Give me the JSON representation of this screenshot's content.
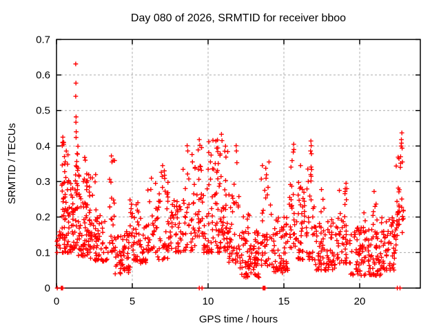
{
  "chart_data": {
    "type": "scatter",
    "title": "Day 080 of 2026, SRMTID for receiver bboo",
    "xlabel": "GPS time / hours",
    "ylabel": "SRMTID / TECUs",
    "xlim": [
      0,
      24
    ],
    "ylim": [
      0,
      0.7
    ],
    "xticks": [
      0,
      5,
      10,
      15,
      20
    ],
    "yticks": [
      0,
      0.1,
      0.2,
      0.3,
      0.4,
      0.5,
      0.6,
      0.7
    ],
    "grid": true,
    "grid_style": "dashed",
    "legend": "none",
    "marker": "plus",
    "colors": {
      "points": "#ff0000",
      "grid": "#a8a8a8",
      "axis": "#000000",
      "background": "#ffffff"
    },
    "points": [
      [
        0.05,
        0
      ],
      [
        0.03,
        0.131
      ],
      [
        0.04,
        0.1
      ],
      [
        0.06,
        0.135
      ],
      [
        0.38,
        0.401
      ],
      [
        0.42,
        0.425
      ],
      [
        0.48,
        0.41
      ],
      [
        1.27,
        0.631
      ],
      [
        1.28,
        0.577
      ],
      [
        1.27,
        0.54
      ],
      [
        1.29,
        0.482
      ],
      [
        1.28,
        0.467
      ],
      [
        1.3,
        0.44
      ],
      [
        1.29,
        0.424
      ],
      [
        3.62,
        0.372
      ],
      [
        3.66,
        0.355
      ],
      [
        7.0,
        0.345
      ],
      [
        8.62,
        0.401
      ],
      [
        8.66,
        0.386
      ],
      [
        9.42,
        0.418
      ],
      [
        9.46,
        0.402
      ],
      [
        9.42,
        0
      ],
      [
        9.6,
        0
      ],
      [
        10.05,
        0.412
      ],
      [
        10.32,
        0.416
      ],
      [
        10.52,
        0.414
      ],
      [
        10.88,
        0.433
      ],
      [
        10.92,
        0.415
      ],
      [
        11.85,
        0.401
      ],
      [
        11.87,
        0.386
      ],
      [
        11.9,
        0.353
      ],
      [
        13.58,
        0.345
      ],
      [
        14.02,
        0.355
      ],
      [
        15.62,
        0.383
      ],
      [
        15.65,
        0.405
      ],
      [
        15.66,
        0.39
      ],
      [
        16.1,
        0.345
      ],
      [
        16.76,
        0.386
      ],
      [
        16.78,
        0.414
      ],
      [
        16.8,
        0.401
      ],
      [
        16.82,
        0.378
      ],
      [
        19.1,
        0.295
      ],
      [
        19.15,
        0.28
      ],
      [
        20.95,
        0.272
      ],
      [
        22.48,
        0
      ],
      [
        22.66,
        0
      ],
      [
        22.68,
        0.34
      ],
      [
        22.7,
        0.37
      ],
      [
        22.73,
        0.4
      ],
      [
        22.75,
        0.418
      ],
      [
        22.76,
        0.408
      ],
      [
        22.78,
        0.437
      ],
      [
        22.8,
        0.394
      ],
      [
        22.82,
        0.355
      ]
    ],
    "cluster_format": "[x_start_hour, x_end_hour, count, y_min, y_max, skew] ; dense regions sampled as y = y_min + (y_max - y_min) * u^skew",
    "clusters": [
      [
        0.02,
        0.3,
        8,
        0.09,
        0.16,
        1.0
      ],
      [
        0.3,
        0.42,
        12,
        0,
        0,
        1.0
      ],
      [
        0.35,
        0.85,
        65,
        0.1,
        0.42,
        1.5
      ],
      [
        0.85,
        1.2,
        30,
        0.1,
        0.3,
        1.4
      ],
      [
        1.2,
        1.45,
        28,
        0.12,
        0.4,
        1.6
      ],
      [
        1.45,
        2.25,
        75,
        0.09,
        0.32,
        1.8
      ],
      [
        1.55,
        2.05,
        6,
        0.3,
        0.37,
        1.0
      ],
      [
        2.25,
        3.45,
        60,
        0.075,
        0.21,
        1.5
      ],
      [
        2.35,
        2.65,
        5,
        0.21,
        0.33,
        1.0
      ],
      [
        3.5,
        3.85,
        22,
        0.1,
        0.36,
        1.2
      ],
      [
        3.85,
        4.85,
        55,
        0.04,
        0.17,
        1.4
      ],
      [
        4.82,
        5.05,
        10,
        0.1,
        0.26,
        1.2
      ],
      [
        5.05,
        5.9,
        45,
        0.07,
        0.2,
        1.4
      ],
      [
        5.25,
        5.45,
        4,
        0.2,
        0.28,
        1.0
      ],
      [
        5.9,
        6.3,
        18,
        0.08,
        0.31,
        1.3
      ],
      [
        6.3,
        7.4,
        55,
        0.08,
        0.3,
        1.7
      ],
      [
        6.9,
        7.15,
        5,
        0.27,
        0.34,
        1.0
      ],
      [
        7.4,
        8.3,
        45,
        0.1,
        0.25,
        1.5
      ],
      [
        8.3,
        9.2,
        45,
        0.1,
        0.38,
        1.8
      ],
      [
        9.25,
        9.65,
        25,
        0.12,
        0.4,
        1.5
      ],
      [
        9.65,
        11.3,
        115,
        0.1,
        0.42,
        1.9
      ],
      [
        11.3,
        12.05,
        40,
        0.07,
        0.3,
        1.6
      ],
      [
        12.05,
        13.4,
        80,
        0.03,
        0.16,
        1.4
      ],
      [
        12.3,
        13.3,
        6,
        0.16,
        0.22,
        1.0
      ],
      [
        13.6,
        13.78,
        10,
        0,
        0,
        1.0
      ],
      [
        13.45,
        14.3,
        40,
        0.06,
        0.34,
        1.8
      ],
      [
        14.3,
        15.35,
        65,
        0.04,
        0.2,
        1.5
      ],
      [
        15.35,
        15.8,
        25,
        0.1,
        0.38,
        1.3
      ],
      [
        15.8,
        16.55,
        45,
        0.08,
        0.32,
        1.6
      ],
      [
        16.55,
        17.0,
        25,
        0.08,
        0.35,
        1.6
      ],
      [
        17.0,
        18.6,
        85,
        0.05,
        0.2,
        1.5
      ],
      [
        17.35,
        17.65,
        4,
        0.2,
        0.3,
        1.0
      ],
      [
        18.6,
        19.4,
        40,
        0.07,
        0.28,
        1.5
      ],
      [
        19.4,
        21.4,
        110,
        0.035,
        0.17,
        1.4
      ],
      [
        20.2,
        20.45,
        5,
        0.15,
        0.22,
        1.0
      ],
      [
        20.85,
        21.15,
        6,
        0.17,
        0.26,
        1.0
      ],
      [
        21.4,
        22.4,
        60,
        0.05,
        0.2,
        1.4
      ],
      [
        22.4,
        22.9,
        30,
        0.14,
        0.38,
        1.2
      ]
    ]
  }
}
